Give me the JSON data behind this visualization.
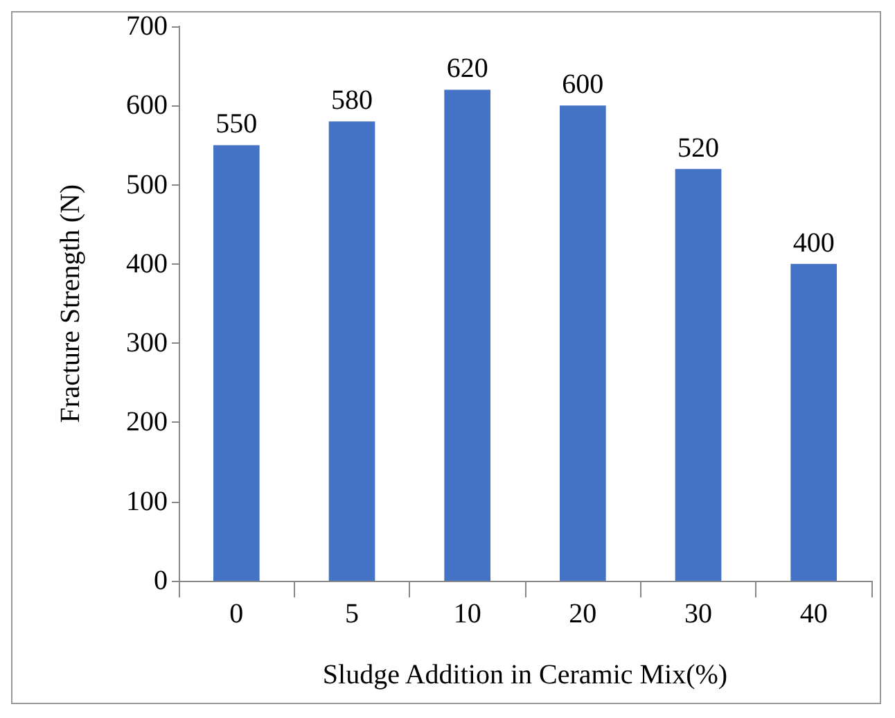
{
  "chart_data": {
    "type": "bar",
    "xlabel": "Sludge Addition in Ceramic Mix(%)",
    "ylabel": "Fracture Strength (N)",
    "categories": [
      "0",
      "5",
      "10",
      "20",
      "30",
      "40"
    ],
    "values": [
      550,
      580,
      620,
      600,
      520,
      400
    ],
    "color": "#4472c4",
    "ylim": [
      0,
      700
    ],
    "yticks": [
      0,
      100,
      200,
      300,
      400,
      500,
      600,
      700
    ],
    "grid": false,
    "data_labels": true
  }
}
